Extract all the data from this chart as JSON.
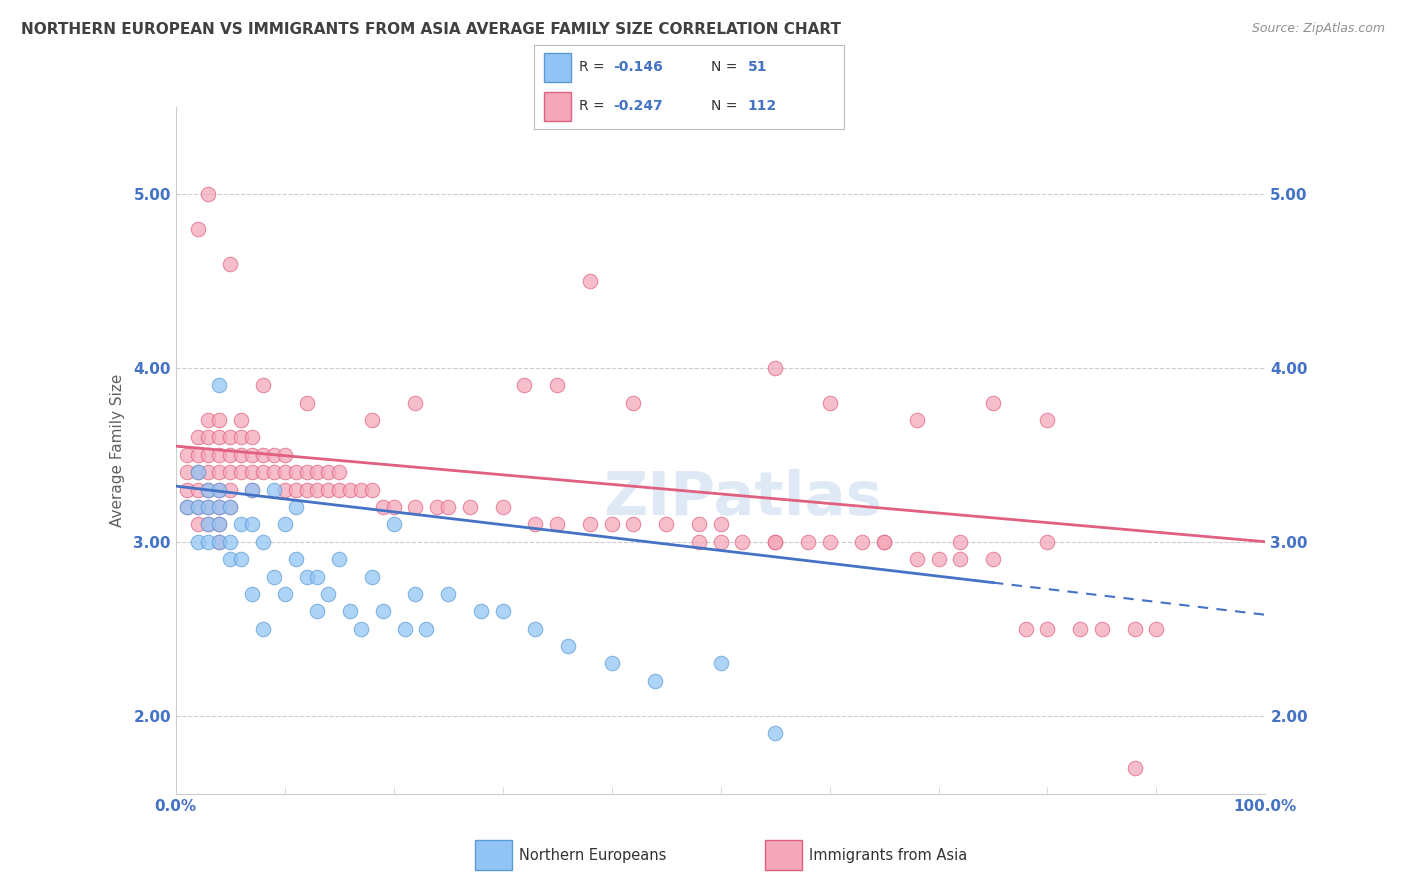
{
  "title": "NORTHERN EUROPEAN VS IMMIGRANTS FROM ASIA AVERAGE FAMILY SIZE CORRELATION CHART",
  "source": "Source: ZipAtlas.com",
  "ylabel": "Average Family Size",
  "watermark": "ZIPatlas",
  "ne_color": "#92C5F5",
  "ne_edge_color": "#5B9BD5",
  "ne_line_color": "#4472C4",
  "asia_color": "#F4A7B9",
  "asia_edge_color": "#E06080",
  "asia_line_color": "#E06080",
  "axis_color": "#4472C4",
  "grid_color": "#CCCCCC",
  "title_color": "#404040",
  "source_color": "#909090",
  "ylabel_color": "#606060",
  "ytick_labels": [
    "2.00",
    "3.00",
    "4.00",
    "5.00"
  ],
  "ytick_values": [
    2.0,
    3.0,
    4.0,
    5.0
  ],
  "ylim": [
    1.55,
    5.5
  ],
  "xlim": [
    0,
    100
  ],
  "ne_R": -0.146,
  "ne_N": 51,
  "asia_R": -0.247,
  "asia_N": 112,
  "ne_line_x0": 0,
  "ne_line_y0": 3.32,
  "ne_line_x1": 100,
  "ne_line_y1": 2.58,
  "ne_line_solid_end": 75,
  "asia_line_x0": 0,
  "asia_line_y0": 3.55,
  "asia_line_x1": 100,
  "asia_line_y1": 3.0,
  "ne_x": [
    1,
    2,
    2,
    2,
    3,
    3,
    3,
    3,
    4,
    4,
    4,
    4,
    4,
    5,
    5,
    5,
    6,
    6,
    7,
    7,
    7,
    8,
    8,
    9,
    9,
    10,
    10,
    11,
    11,
    12,
    13,
    13,
    14,
    15,
    16,
    17,
    18,
    19,
    20,
    21,
    22,
    23,
    25,
    28,
    30,
    33,
    36,
    40,
    44,
    50,
    55
  ],
  "ne_y": [
    3.2,
    3.4,
    3.2,
    3.0,
    3.3,
    3.2,
    3.1,
    3.0,
    3.9,
    3.3,
    3.2,
    3.1,
    3.0,
    3.2,
    3.0,
    2.9,
    3.1,
    2.9,
    3.3,
    3.1,
    2.7,
    3.0,
    2.5,
    3.3,
    2.8,
    3.1,
    2.7,
    3.2,
    2.9,
    2.8,
    2.8,
    2.6,
    2.7,
    2.9,
    2.6,
    2.5,
    2.8,
    2.6,
    3.1,
    2.5,
    2.7,
    2.5,
    2.7,
    2.6,
    2.6,
    2.5,
    2.4,
    2.3,
    2.2,
    2.3,
    1.9
  ],
  "asia_x": [
    1,
    1,
    1,
    1,
    2,
    2,
    2,
    2,
    2,
    2,
    3,
    3,
    3,
    3,
    3,
    3,
    3,
    4,
    4,
    4,
    4,
    4,
    4,
    4,
    4,
    5,
    5,
    5,
    5,
    5,
    6,
    6,
    6,
    6,
    7,
    7,
    7,
    7,
    8,
    8,
    9,
    9,
    10,
    10,
    10,
    11,
    11,
    12,
    12,
    13,
    13,
    14,
    14,
    15,
    15,
    16,
    17,
    18,
    19,
    20,
    22,
    24,
    25,
    27,
    30,
    33,
    35,
    38,
    40,
    42,
    45,
    48,
    50,
    52,
    55,
    58,
    60,
    63,
    65,
    68,
    70,
    72,
    75,
    78,
    80,
    83,
    85,
    88,
    90,
    35,
    42,
    55,
    60,
    68,
    75,
    80,
    38,
    32,
    22,
    18,
    12,
    8,
    5,
    3,
    2,
    48,
    50,
    55,
    65,
    72,
    80,
    88
  ],
  "asia_y": [
    3.5,
    3.4,
    3.3,
    3.2,
    3.6,
    3.5,
    3.4,
    3.3,
    3.2,
    3.1,
    3.7,
    3.6,
    3.5,
    3.4,
    3.3,
    3.2,
    3.1,
    3.7,
    3.6,
    3.5,
    3.4,
    3.3,
    3.2,
    3.1,
    3.0,
    3.6,
    3.5,
    3.4,
    3.3,
    3.2,
    3.7,
    3.6,
    3.5,
    3.4,
    3.6,
    3.5,
    3.4,
    3.3,
    3.5,
    3.4,
    3.5,
    3.4,
    3.5,
    3.4,
    3.3,
    3.4,
    3.3,
    3.4,
    3.3,
    3.4,
    3.3,
    3.4,
    3.3,
    3.4,
    3.3,
    3.3,
    3.3,
    3.3,
    3.2,
    3.2,
    3.2,
    3.2,
    3.2,
    3.2,
    3.2,
    3.1,
    3.1,
    3.1,
    3.1,
    3.1,
    3.1,
    3.1,
    3.1,
    3.0,
    3.0,
    3.0,
    3.0,
    3.0,
    3.0,
    2.9,
    2.9,
    2.9,
    2.9,
    2.5,
    2.5,
    2.5,
    2.5,
    2.5,
    2.5,
    3.9,
    3.8,
    4.0,
    3.8,
    3.7,
    3.8,
    3.7,
    4.5,
    3.9,
    3.8,
    3.7,
    3.8,
    3.9,
    4.6,
    5.0,
    4.8,
    3.0,
    3.0,
    3.0,
    3.0,
    3.0,
    3.0,
    1.7
  ]
}
